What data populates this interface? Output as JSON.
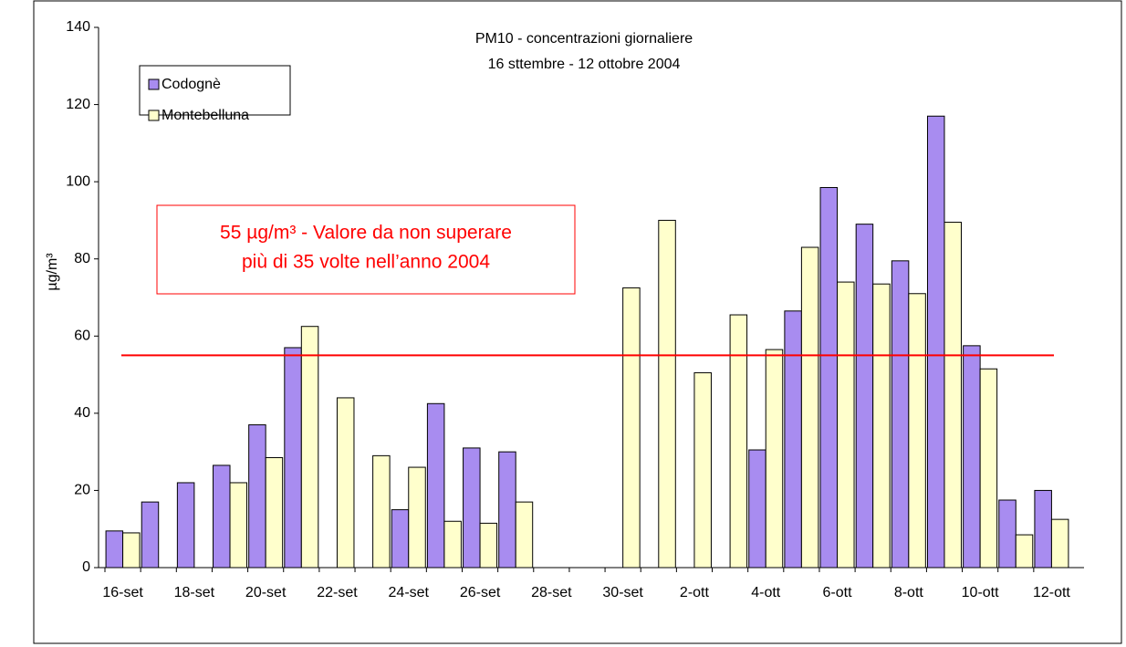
{
  "chart_data": {
    "type": "bar",
    "title": [
      "PM10 - concentrazioni giornaliere",
      "16 sttembre - 12 ottobre 2004"
    ],
    "ylabel": "µg/m³",
    "categories": [
      "16-set",
      null,
      "18-set",
      null,
      "20-set",
      null,
      "22-set",
      null,
      "24-set",
      null,
      "26-set",
      null,
      "28-set",
      null,
      "30-set",
      null,
      "2-ott",
      null,
      "4-ott",
      null,
      "6-ott",
      null,
      "8-ott",
      null,
      "10-ott",
      null,
      "12-ott"
    ],
    "series": [
      {
        "name": "Codognè",
        "color": "#a88cf0",
        "values": [
          9.5,
          17,
          22,
          26.5,
          37,
          57,
          null,
          null,
          15,
          42.5,
          31,
          30,
          null,
          null,
          null,
          null,
          null,
          null,
          30.5,
          66.5,
          98.5,
          89,
          79.5,
          117,
          57.5,
          17.5,
          20
        ]
      },
      {
        "name": "Montebelluna",
        "color": "#ffffcc",
        "values": [
          9,
          null,
          null,
          22,
          28.5,
          62.5,
          44,
          29,
          26,
          12,
          11.5,
          17,
          null,
          null,
          72.5,
          90,
          50.5,
          65.5,
          56.5,
          83,
          74,
          73.5,
          71,
          89.5,
          51.5,
          8.5,
          12.5
        ]
      }
    ],
    "threshold": {
      "value": 55,
      "color": "#ff0000",
      "label": [
        "55 µg/m³ - Valore da non superare",
        "più di 35 volte nell’anno 2004"
      ]
    },
    "ylim": [
      0,
      140
    ],
    "yticks": [
      0,
      20,
      40,
      60,
      80,
      100,
      120,
      140
    ],
    "legend": "top-left"
  }
}
